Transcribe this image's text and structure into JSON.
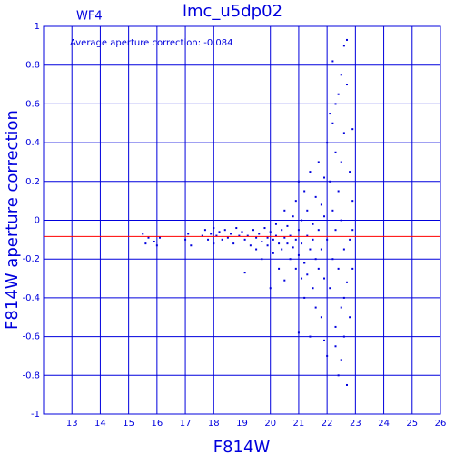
{
  "chart_data": {
    "type": "scatter",
    "title": "lmc_u5dp02",
    "subtitle": "WF4",
    "annotation": "Average aperture correction: -0.084",
    "average_line": -0.084,
    "average_color": "#ff0000",
    "x_label": "F814W",
    "y_label": "F814W aperture correction",
    "xlim": [
      12,
      26
    ],
    "xticks": [
      13,
      14,
      15,
      16,
      17,
      18,
      19,
      20,
      21,
      22,
      23,
      24,
      25,
      26
    ],
    "ylim": [
      -1,
      1
    ],
    "yticks": [
      -1,
      -0.8,
      -0.6,
      -0.4,
      -0.2,
      0,
      0.2,
      0.4,
      0.6,
      0.8,
      1
    ],
    "grid": true,
    "color": "#0000dd",
    "x": [
      15.5,
      15.6,
      15.7,
      15.9,
      16.0,
      16.1,
      17.0,
      17.1,
      17.2,
      17.6,
      17.7,
      17.8,
      17.9,
      18.0,
      18.0,
      18.1,
      18.2,
      18.3,
      18.4,
      18.5,
      18.6,
      18.7,
      18.8,
      18.9,
      19.0,
      19.1,
      19.1,
      19.2,
      19.3,
      19.4,
      19.5,
      19.5,
      19.6,
      19.7,
      19.7,
      19.8,
      19.9,
      19.9,
      20.0,
      20.0,
      20.1,
      20.1,
      20.2,
      20.2,
      20.3,
      20.3,
      20.4,
      20.4,
      20.5,
      20.5,
      20.5,
      20.6,
      20.6,
      20.7,
      20.7,
      20.8,
      20.8,
      20.9,
      20.9,
      20.9,
      21.0,
      21.0,
      21.0,
      21.1,
      21.1,
      21.1,
      21.2,
      21.2,
      21.2,
      21.3,
      21.3,
      21.3,
      21.4,
      21.4,
      21.5,
      21.5,
      21.5,
      21.6,
      21.6,
      21.6,
      21.7,
      21.7,
      21.7,
      21.8,
      21.8,
      21.8,
      21.9,
      21.9,
      21.9,
      21.0,
      21.2,
      21.4,
      21.9,
      22.0,
      22.0,
      22.0,
      22.1,
      22.1,
      22.1,
      22.2,
      22.2,
      22.2,
      22.3,
      22.3,
      22.3,
      22.3,
      22.4,
      22.4,
      22.4,
      22.5,
      22.5,
      22.5,
      22.5,
      22.6,
      22.6,
      22.6,
      22.6,
      22.7,
      22.7,
      22.7,
      22.7,
      22.8,
      22.8,
      22.8,
      22.9,
      22.9,
      22.9,
      22.9,
      22.4,
      22.5,
      22.3,
      22.6,
      22.2
    ],
    "values": [
      -0.07,
      -0.12,
      -0.09,
      -0.11,
      -0.13,
      -0.09,
      -0.1,
      -0.07,
      -0.13,
      -0.08,
      -0.05,
      -0.1,
      -0.07,
      -0.04,
      -0.12,
      -0.08,
      -0.06,
      -0.1,
      -0.05,
      -0.09,
      -0.07,
      -0.12,
      -0.04,
      -0.08,
      -0.06,
      -0.1,
      -0.27,
      -0.08,
      -0.13,
      -0.05,
      -0.09,
      -0.15,
      -0.07,
      -0.11,
      -0.2,
      -0.04,
      -0.09,
      -0.13,
      -0.06,
      -0.35,
      -0.1,
      -0.17,
      -0.02,
      -0.08,
      -0.12,
      -0.25,
      -0.05,
      -0.15,
      -0.09,
      0.05,
      -0.31,
      -0.12,
      -0.03,
      -0.2,
      -0.08,
      -0.14,
      0.02,
      -0.1,
      -0.25,
      0.1,
      -0.18,
      0.2,
      -0.05,
      -0.3,
      0.0,
      -0.12,
      0.15,
      -0.22,
      -0.4,
      -0.08,
      0.05,
      -0.28,
      -0.15,
      0.25,
      -0.35,
      -0.02,
      -0.1,
      0.12,
      -0.2,
      -0.45,
      -0.05,
      -0.25,
      0.3,
      0.08,
      -0.15,
      -0.5,
      -0.3,
      0.02,
      0.22,
      -0.58,
      -0.22,
      -0.6,
      -0.62,
      -0.7,
      -0.1,
      0.4,
      0.2,
      -0.35,
      0.55,
      -0.2,
      0.05,
      0.82,
      -0.55,
      0.35,
      -0.05,
      0.6,
      -0.8,
      0.15,
      -0.25,
      0.75,
      -0.45,
      0.0,
      -0.72,
      0.9,
      -0.15,
      0.45,
      -0.6,
      0.7,
      -0.32,
      0.93,
      -0.85,
      0.25,
      -0.1,
      -0.5,
      0.1,
      -0.25,
      0.47,
      -0.05,
      0.65,
      0.3,
      -0.65,
      -0.4,
      0.5
    ]
  }
}
